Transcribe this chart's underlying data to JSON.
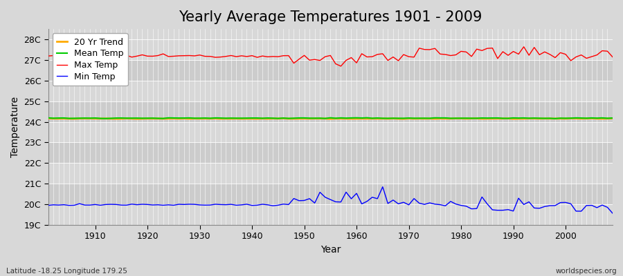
{
  "title": "Yearly Average Temperatures 1901 - 2009",
  "xlabel": "Year",
  "ylabel": "Temperature",
  "background_color": "#d8d8d8",
  "plot_bg_light": "#dcdcdc",
  "plot_bg_dark": "#c8c8c8",
  "ylim": [
    19,
    28.5
  ],
  "yticks": [
    19,
    20,
    21,
    22,
    23,
    24,
    25,
    26,
    27,
    28
  ],
  "ytick_labels": [
    "19C",
    "20C",
    "21C",
    "22C",
    "23C",
    "24C",
    "25C",
    "26C",
    "27C",
    "28C"
  ],
  "xlim": [
    1901,
    2009
  ],
  "xticks": [
    1910,
    1920,
    1930,
    1940,
    1950,
    1960,
    1970,
    1980,
    1990,
    2000
  ],
  "legend_labels": [
    "Max Temp",
    "Mean Temp",
    "Min Temp",
    "20 Yr Trend"
  ],
  "legend_colors": [
    "#ff0000",
    "#00cc00",
    "#0000ff",
    "#ffaa00"
  ],
  "max_temp_base": 27.2,
  "mean_temp_base": 24.18,
  "min_temp_base": 19.98,
  "footer_left": "Latitude -18.25 Longitude 179.25",
  "footer_right": "worldspecies.org",
  "title_fontsize": 15,
  "axis_label_fontsize": 10,
  "tick_label_fontsize": 9,
  "legend_fontsize": 9,
  "grid_color": "#ffffff",
  "line_width": 1.0
}
